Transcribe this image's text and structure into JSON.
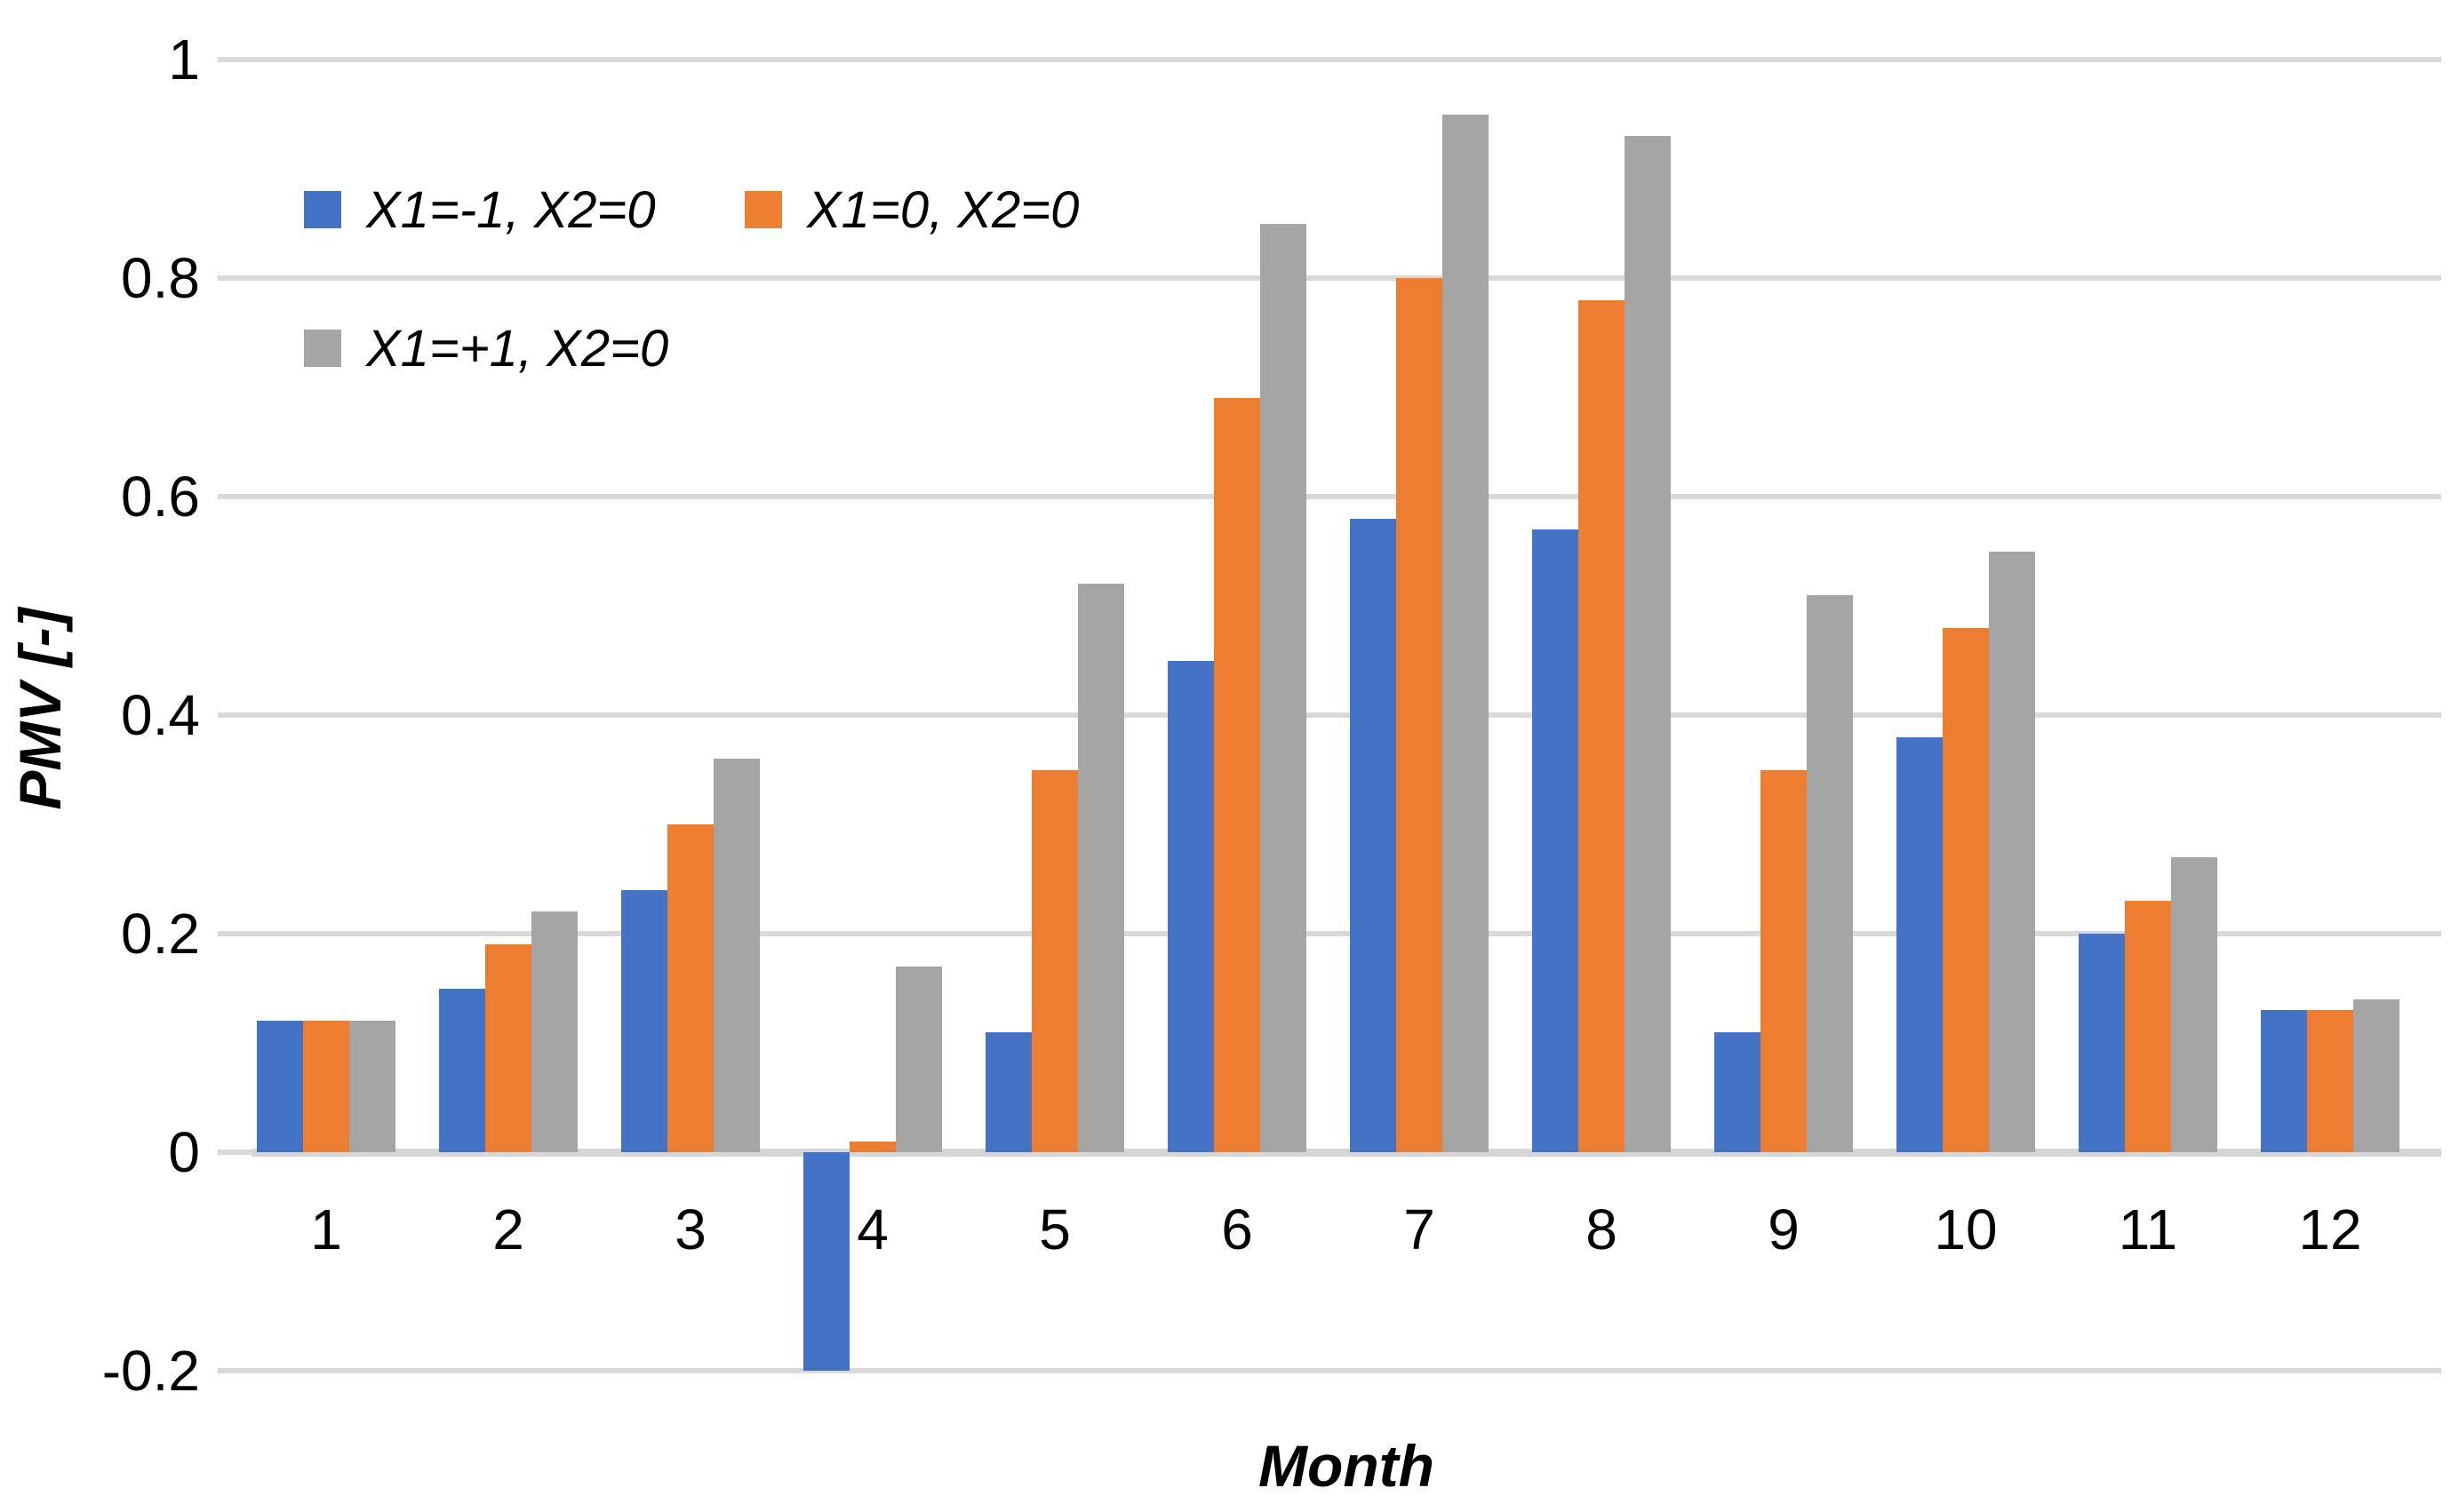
{
  "chart_data": {
    "type": "bar",
    "title": "",
    "xlabel": "Month",
    "ylabel": "PMV [-]",
    "categories": [
      "1",
      "2",
      "3",
      "4",
      "5",
      "6",
      "7",
      "8",
      "9",
      "10",
      "11",
      "12"
    ],
    "series": [
      {
        "name": "X1=-1, X2=0",
        "color": "#4472C4",
        "values": [
          0.12,
          0.15,
          0.24,
          -0.2,
          0.11,
          0.45,
          0.58,
          0.57,
          0.11,
          0.38,
          0.2,
          0.13
        ]
      },
      {
        "name": "X1=0, X2=0",
        "color": "#ED7D31",
        "values": [
          0.12,
          0.19,
          0.3,
          0.01,
          0.35,
          0.69,
          0.8,
          0.78,
          0.35,
          0.48,
          0.23,
          0.13
        ]
      },
      {
        "name": "X1=+1, X2=0",
        "color": "#A5A5A5",
        "values": [
          0.12,
          0.22,
          0.36,
          0.17,
          0.52,
          0.85,
          0.95,
          0.93,
          0.51,
          0.55,
          0.27,
          0.14
        ]
      }
    ],
    "ylim": [
      -0.2,
      1.0
    ],
    "yticks": [
      1,
      0.8,
      0.6,
      0.4,
      0.2,
      0,
      -0.2
    ],
    "ytick_labels": [
      "1",
      "0.8",
      "0.6",
      "0.4",
      "0.2",
      "0",
      "-0.2"
    ],
    "grid": true,
    "legend_position": "inside-top-left",
    "colors": {
      "gridline": "#D9D9D9",
      "axis_line": "#D6D6D6",
      "text": "#000000",
      "background": "#FFFFFF"
    }
  }
}
